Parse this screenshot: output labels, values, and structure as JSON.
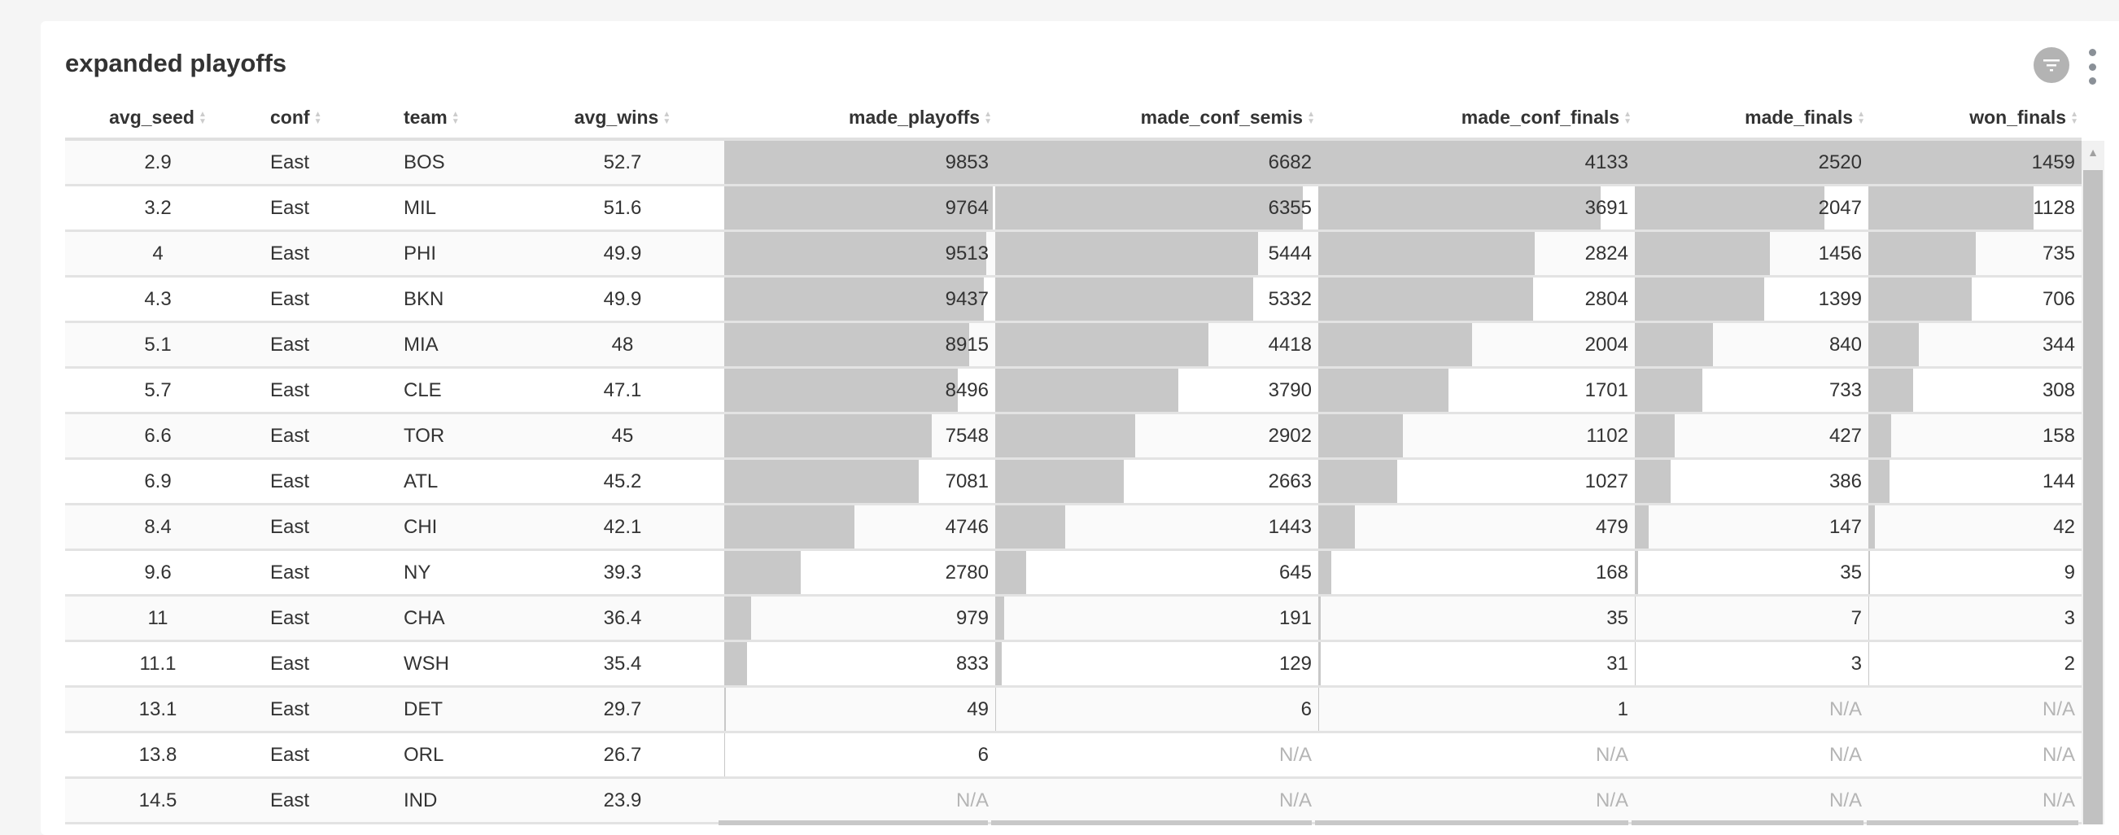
{
  "title": "expanded playoffs",
  "icons": {
    "filter": "filter-icon",
    "more": "more-vertical-icon",
    "sort": "sort-icon"
  },
  "colors": {
    "bar": "#c8c8c8",
    "na_text": "#b5b5b5",
    "button": "#b3b3b3"
  },
  "columns": [
    {
      "key": "avg_seed",
      "label": "avg_seed"
    },
    {
      "key": "conf",
      "label": "conf"
    },
    {
      "key": "team",
      "label": "team"
    },
    {
      "key": "avg_wins",
      "label": "avg_wins"
    },
    {
      "key": "made_playoffs",
      "label": "made_playoffs"
    },
    {
      "key": "made_conf_semis",
      "label": "made_conf_semis"
    },
    {
      "key": "made_conf_finals",
      "label": "made_conf_finals"
    },
    {
      "key": "made_finals",
      "label": "made_finals"
    },
    {
      "key": "won_finals",
      "label": "won_finals"
    }
  ],
  "rows": [
    [
      "2.9",
      "East",
      "BOS",
      "52.7",
      "9853",
      "6682",
      "4133",
      "2520",
      "1459"
    ],
    [
      "3.2",
      "East",
      "MIL",
      "51.6",
      "9764",
      "6355",
      "3691",
      "2047",
      "1128"
    ],
    [
      "4",
      "East",
      "PHI",
      "49.9",
      "9513",
      "5444",
      "2824",
      "1456",
      "735"
    ],
    [
      "4.3",
      "East",
      "BKN",
      "49.9",
      "9437",
      "5332",
      "2804",
      "1399",
      "706"
    ],
    [
      "5.1",
      "East",
      "MIA",
      "48",
      "8915",
      "4418",
      "2004",
      "840",
      "344"
    ],
    [
      "5.7",
      "East",
      "CLE",
      "47.1",
      "8496",
      "3790",
      "1701",
      "733",
      "308"
    ],
    [
      "6.6",
      "East",
      "TOR",
      "45",
      "7548",
      "2902",
      "1102",
      "427",
      "158"
    ],
    [
      "6.9",
      "East",
      "ATL",
      "45.2",
      "7081",
      "2663",
      "1027",
      "386",
      "144"
    ],
    [
      "8.4",
      "East",
      "CHI",
      "42.1",
      "4746",
      "1443",
      "479",
      "147",
      "42"
    ],
    [
      "9.6",
      "East",
      "NY",
      "39.3",
      "2780",
      "645",
      "168",
      "35",
      "9"
    ],
    [
      "11",
      "East",
      "CHA",
      "36.4",
      "979",
      "191",
      "35",
      "7",
      "3"
    ],
    [
      "11.1",
      "East",
      "WSH",
      "35.4",
      "833",
      "129",
      "31",
      "3",
      "2"
    ],
    [
      "13.1",
      "East",
      "DET",
      "29.7",
      "49",
      "6",
      "1",
      "N/A",
      "N/A"
    ],
    [
      "13.8",
      "East",
      "ORL",
      "26.7",
      "6",
      "N/A",
      "N/A",
      "N/A",
      "N/A"
    ],
    [
      "14.5",
      "East",
      "IND",
      "23.9",
      "N/A",
      "N/A",
      "N/A",
      "N/A",
      "N/A"
    ]
  ]
}
